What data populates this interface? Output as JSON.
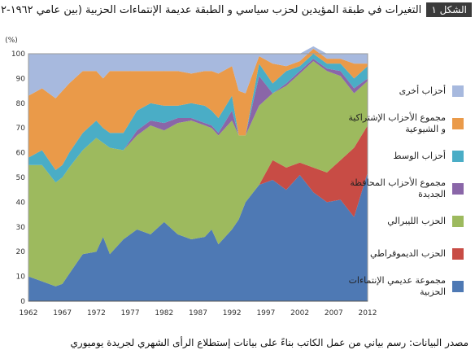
{
  "figure": {
    "badge": "الشكل ١",
    "title": "التغيرات في طبقة المؤيدين لحزب سياسي و الطبقة عديمة الإنتماءات الحزبية (بين عامي ١٩٦٢-٢٠١٢)",
    "source": "مصدر البيانات: رسم بياني من عمل الكاتب بناءً على بيانات إستطلاع الرأى الشهري لجريدة يوميوري"
  },
  "chart_data": {
    "type": "area",
    "stacked": true,
    "ylabel": "(%)",
    "ylim": [
      0,
      100
    ],
    "yticks": [
      0,
      10,
      20,
      30,
      40,
      50,
      60,
      70,
      80,
      90,
      100
    ],
    "xlim": [
      1962,
      2012
    ],
    "xticks": [
      1962,
      1967,
      1972,
      1977,
      1982,
      1987,
      1992,
      1997,
      2002,
      2007,
      2012
    ],
    "grid": true,
    "legend_position": "right",
    "x": [
      1962,
      1964,
      1966,
      1967,
      1968,
      1970,
      1972,
      1973,
      1974,
      1976,
      1978,
      1980,
      1982,
      1984,
      1986,
      1988,
      1989,
      1990,
      1992,
      1993,
      1994,
      1996,
      1998,
      2000,
      2002,
      2004,
      2006,
      2008,
      2010,
      2012
    ],
    "series": [
      {
        "name": "مجموعة عديمي الإنتماءات الحزبية",
        "color": "#4e79b4",
        "values": [
          10,
          8,
          6,
          7,
          11,
          19,
          20,
          26,
          19,
          25,
          29,
          27,
          32,
          27,
          25,
          26,
          29,
          23,
          29,
          33,
          40,
          47,
          49,
          45,
          51,
          44,
          40,
          41,
          34,
          52
        ]
      },
      {
        "name": "الحزب الديموقراطي",
        "color": "#c84c45",
        "values": [
          0,
          0,
          0,
          0,
          0,
          0,
          0,
          0,
          0,
          0,
          0,
          0,
          0,
          0,
          0,
          0,
          0,
          0,
          0,
          0,
          0,
          0,
          8,
          9,
          5,
          10,
          12,
          16,
          28,
          19
        ]
      },
      {
        "name": "الحزب الليبرالي",
        "color": "#9dba5e",
        "values": [
          45,
          47,
          42,
          43,
          43,
          42,
          46,
          38,
          43,
          36,
          38,
          44,
          37,
          45,
          48,
          45,
          41,
          44,
          44,
          34,
          27,
          32,
          27,
          33,
          36,
          43,
          41,
          34,
          22,
          18
        ]
      },
      {
        "name": "مجموع الأحزاب المحافظة الجديدة",
        "color": "#8a66a8",
        "values": [
          0,
          0,
          0,
          0,
          0,
          0,
          0,
          0,
          0,
          0,
          2,
          2,
          3,
          2,
          1,
          1,
          1,
          1,
          4,
          0,
          0,
          12,
          0,
          1,
          1,
          1,
          1,
          2,
          2,
          1
        ]
      },
      {
        "name": "أحزاب الوسط",
        "color": "#4aadc6",
        "values": [
          3,
          6,
          5,
          5,
          6,
          7,
          7,
          6,
          6,
          7,
          8,
          7,
          7,
          5,
          6,
          7,
          6,
          6,
          6,
          0,
          0,
          5,
          4,
          5,
          2,
          2,
          2,
          3,
          4,
          5
        ]
      },
      {
        "name": "مجموع الأحزاب الإشتراكية و الشيوعية",
        "color": "#ea9a49",
        "values": [
          25,
          25,
          29,
          30,
          28,
          25,
          20,
          20,
          25,
          25,
          16,
          13,
          14,
          14,
          12,
          14,
          16,
          18,
          12,
          18,
          17,
          3,
          8,
          2,
          2,
          2,
          2,
          2,
          6,
          1
        ]
      },
      {
        "name": "أحزاب أخرى",
        "color": "#a7b9de",
        "values": [
          17,
          14,
          18,
          15,
          12,
          7,
          7,
          10,
          7,
          7,
          7,
          7,
          7,
          7,
          8,
          7,
          7,
          8,
          5,
          15,
          16,
          1,
          4,
          5,
          3,
          1,
          2,
          2,
          4,
          4
        ]
      }
    ]
  }
}
